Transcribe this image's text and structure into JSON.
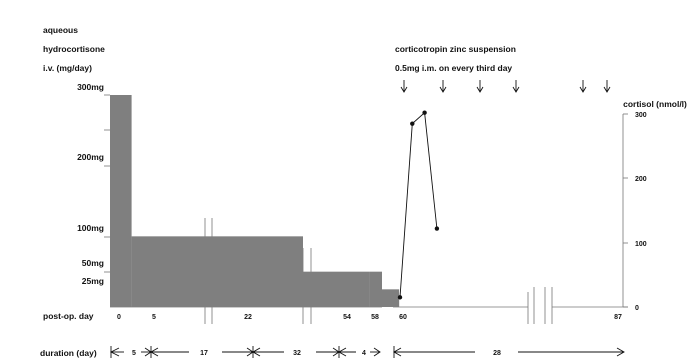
{
  "chart_data": {
    "type": "bar",
    "left_title_lines": [
      "aqueous",
      "hydrocortisone",
      "i.v. (mg/day)"
    ],
    "right_title_lines": [
      "corticotropin zinc suspension",
      "0.5mg i.m. on every third day"
    ],
    "left_axis_labels": [
      {
        "text": "300mg",
        "value": 300
      },
      {
        "text": "200mg",
        "value": 200
      },
      {
        "text": "100mg",
        "value": 100
      },
      {
        "text": "50mg",
        "value": 50
      },
      {
        "text": "25mg",
        "value": 25
      }
    ],
    "ylabel_right": "cortisol (nmol/l)",
    "right_ticks": [
      "300",
      "200",
      "100",
      "0"
    ],
    "right_ylim": [
      0,
      300
    ],
    "xlabel": "post-op. day",
    "x_ticks": [
      "0",
      "5",
      "22",
      "54",
      "58",
      "60",
      "87"
    ],
    "duration_label": "duration (day)",
    "durations": [
      "5",
      "17",
      "32",
      "4",
      "28"
    ],
    "hydrocortisone_bars": [
      {
        "start_day": 0,
        "end_day": 5,
        "dose_mg": 300
      },
      {
        "start_day": 5,
        "end_day": 22,
        "dose_mg": 100
      },
      {
        "start_day": 22,
        "end_day": 37,
        "dose_mg": 100
      },
      {
        "start_day": 37,
        "end_day": 54,
        "dose_mg": 50
      },
      {
        "start_day": 54,
        "end_day": 58,
        "dose_mg": 50
      },
      {
        "start_day": 58,
        "end_day": 60,
        "dose_mg": 25
      }
    ],
    "corticotropin_injection_days": [
      60,
      63,
      66,
      69,
      72,
      75
    ],
    "cortisol_series": {
      "name": "cortisol (nmol/l)",
      "x": [
        60,
        61,
        62,
        63
      ],
      "y": [
        15,
        285,
        302,
        122
      ]
    }
  }
}
